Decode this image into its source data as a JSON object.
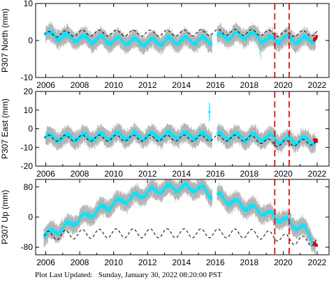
{
  "footer": {
    "label": "Plot Last Updated:",
    "timestamp": "Sunday, January 30, 2022 08:20:00 PST"
  },
  "colors": {
    "error_bar": "#b4b4b4",
    "data_point": "#00e5ff",
    "model": "#000000",
    "recent_point": "#e00000",
    "event_line": "#e01010"
  },
  "chart_data": [
    {
      "type": "scatter",
      "ylabel": "P307 North (mm)",
      "ylim": [
        -10,
        10
      ],
      "yticks": [
        -10,
        0,
        10
      ],
      "xlim": [
        2005.4,
        2022.7
      ],
      "xticks": [
        2006,
        2008,
        2010,
        2012,
        2014,
        2016,
        2018,
        2020,
        2022
      ],
      "event_lines": [
        2019.5,
        2020.35
      ],
      "data_gap": [
        2015.8,
        2016.1
      ],
      "series": [
        {
          "values": [
            [
              2006,
              1.5
            ],
            [
              2008,
              0.5
            ],
            [
              2010,
              0.0
            ],
            [
              2012,
              -0.5
            ],
            [
              2014,
              0.0
            ],
            [
              2015.7,
              0.0
            ],
            [
              2016.2,
              1.0
            ],
            [
              2018,
              1.5
            ],
            [
              2019.2,
              0.0
            ],
            [
              2020,
              0.5
            ],
            [
              2021,
              0.0
            ],
            [
              2021.9,
              0.5
            ]
          ]
        },
        {
          "values": [
            [
              2006,
              1.6
            ],
            [
              2008,
              2.0
            ],
            [
              2010,
              2.0
            ],
            [
              2012,
              2.0
            ],
            [
              2014,
              2.0
            ],
            [
              2016,
              2.2
            ],
            [
              2018,
              2.2
            ],
            [
              2020,
              1.8
            ],
            [
              2022,
              2.0
            ]
          ]
        },
        {
          "values": [
            [
              2021.8,
              0.0
            ],
            [
              2022,
              1.0
            ]
          ]
        }
      ]
    },
    {
      "type": "scatter",
      "ylabel": "P307 East (mm)",
      "ylim": [
        -20,
        20
      ],
      "yticks": [
        -20,
        -10,
        0,
        10,
        20
      ],
      "xlim": [
        2005.4,
        2022.7
      ],
      "xticks": [
        2006,
        2008,
        2010,
        2012,
        2014,
        2016,
        2018,
        2020,
        2022
      ],
      "event_lines": [
        2019.5,
        2020.35
      ],
      "data_gap": [
        2015.8,
        2016.1
      ],
      "series": [
        {
          "values": [
            [
              2006,
              -5.0
            ],
            [
              2008,
              -4.5
            ],
            [
              2010,
              -4.0
            ],
            [
              2012,
              -4.0
            ],
            [
              2014,
              -3.5
            ],
            [
              2015.7,
              -4.0
            ],
            [
              2016.2,
              -4.0
            ],
            [
              2018,
              -4.5
            ],
            [
              2019.3,
              -5.0
            ],
            [
              2020,
              -6.5
            ],
            [
              2021,
              -6.0
            ],
            [
              2021.9,
              -6.5
            ]
          ]
        },
        {
          "values": [
            [
              2006,
              -5.0
            ],
            [
              2008,
              -5.0
            ],
            [
              2010,
              -5.0
            ],
            [
              2012,
              -5.0
            ],
            [
              2014,
              -5.0
            ],
            [
              2016,
              -5.0
            ],
            [
              2018,
              -5.0
            ],
            [
              2019.6,
              -8.0
            ],
            [
              2022,
              -7.0
            ]
          ]
        },
        {
          "values": [
            [
              2021.8,
              -6.0
            ],
            [
              2022,
              -6.5
            ]
          ]
        }
      ]
    },
    {
      "type": "scatter",
      "ylabel": "P307 Up (mm)",
      "ylim": [
        -100,
        100
      ],
      "yticks": [
        -80,
        0,
        80
      ],
      "xlim": [
        2005.4,
        2022.7
      ],
      "xticks": [
        2006,
        2008,
        2010,
        2012,
        2014,
        2016,
        2018,
        2020,
        2022
      ],
      "event_lines": [
        2019.5,
        2020.35
      ],
      "data_gap": [
        2015.8,
        2016.1
      ],
      "series": [
        {
          "values": [
            [
              2005.9,
              -50
            ],
            [
              2007,
              -30
            ],
            [
              2008,
              -5
            ],
            [
              2009,
              15
            ],
            [
              2010,
              35
            ],
            [
              2011,
              50
            ],
            [
              2012,
              65
            ],
            [
              2013,
              75
            ],
            [
              2014,
              78
            ],
            [
              2015.2,
              75
            ],
            [
              2015.7,
              60
            ],
            [
              2016.1,
              55
            ],
            [
              2017,
              40
            ],
            [
              2018,
              25
            ],
            [
              2019,
              10
            ],
            [
              2019.5,
              0
            ],
            [
              2020,
              -5
            ],
            [
              2020.5,
              -20
            ],
            [
              2021,
              -25
            ],
            [
              2021.5,
              -45
            ],
            [
              2021.9,
              -70
            ]
          ]
        },
        {
          "values": [
            [
              2006,
              -50
            ],
            [
              2008,
              -45
            ],
            [
              2010,
              -43
            ],
            [
              2012,
              -43
            ],
            [
              2014,
              -43
            ],
            [
              2016,
              -43
            ],
            [
              2018,
              -44
            ],
            [
              2019.5,
              -50
            ],
            [
              2020.4,
              -60
            ],
            [
              2022,
              -65
            ]
          ]
        },
        {
          "values": [
            [
              2021.8,
              -70
            ],
            [
              2022,
              -75
            ]
          ]
        }
      ]
    }
  ]
}
